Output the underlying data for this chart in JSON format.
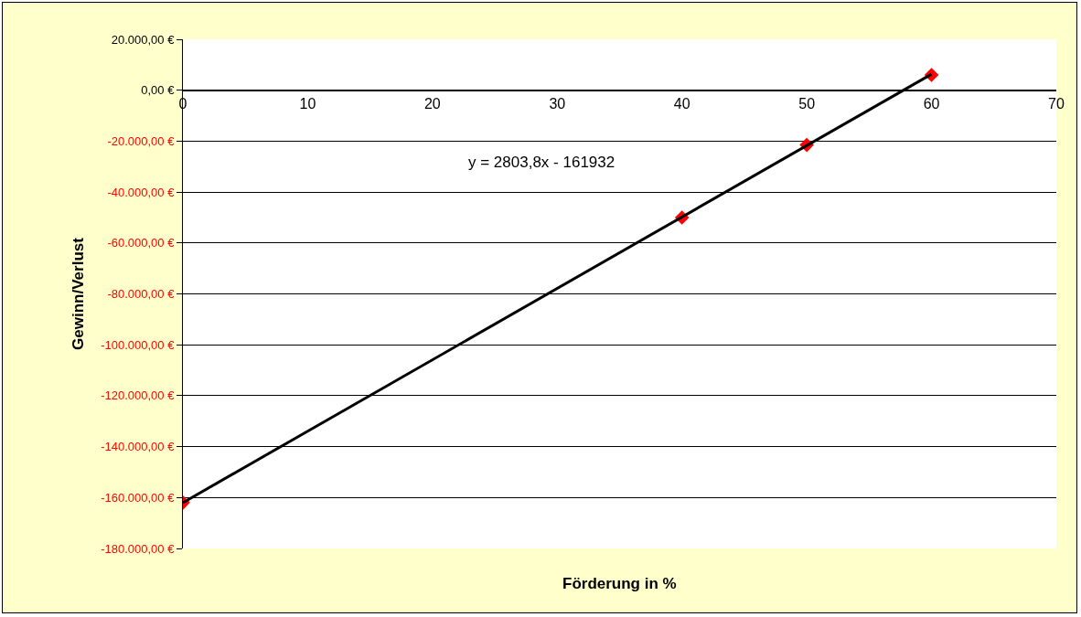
{
  "chart_data": {
    "type": "scatter",
    "xlabel": "Förderung in %",
    "ylabel": "Gewinn/Verlust",
    "xlim": [
      0,
      70
    ],
    "xticks": [
      0,
      10,
      20,
      30,
      40,
      50,
      60,
      70
    ],
    "ylim": [
      -180000,
      20000
    ],
    "yticks": [
      {
        "value": 20000,
        "label": "20.000,00 €"
      },
      {
        "value": 0,
        "label": "0,00 €"
      },
      {
        "value": -20000,
        "label": "-20.000,00 €"
      },
      {
        "value": -40000,
        "label": "-40.000,00 €"
      },
      {
        "value": -60000,
        "label": "-60.000,00 €"
      },
      {
        "value": -80000,
        "label": "-80.000,00 €"
      },
      {
        "value": -100000,
        "label": "-100.000,00 €"
      },
      {
        "value": -120000,
        "label": "-120.000,00 €"
      },
      {
        "value": -140000,
        "label": "-140.000,00 €"
      },
      {
        "value": -160000,
        "label": "-160.000,00 €"
      },
      {
        "value": -180000,
        "label": "-180.000,00 €"
      }
    ],
    "grid": "y",
    "legend": false,
    "marker": "diamond",
    "series": [
      {
        "type": "scatter",
        "color": "#ff0000",
        "x": [
          0,
          40,
          50,
          60
        ],
        "values": [
          -162000,
          -50000,
          -21500,
          6000
        ]
      },
      {
        "type": "line",
        "color": "#000000",
        "marker": "none",
        "x": [
          0,
          60
        ],
        "values": [
          -162000,
          6300
        ]
      }
    ],
    "annotations": [
      "y = 2803,8x - 161932"
    ]
  }
}
